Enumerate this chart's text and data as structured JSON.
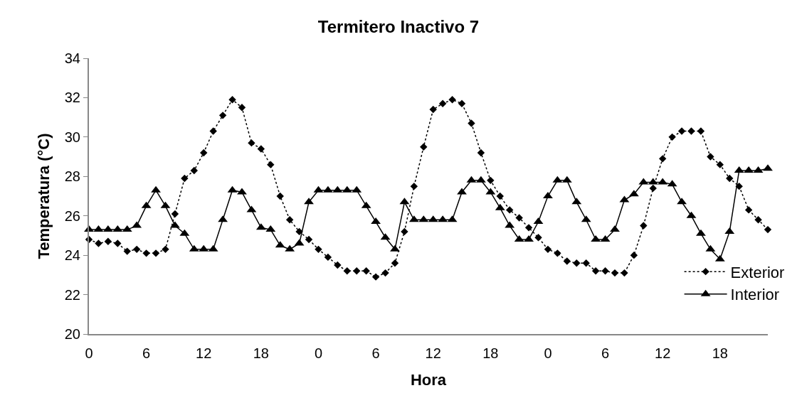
{
  "chart_data": {
    "type": "line",
    "title": "Termitero Inactivo 7",
    "xlabel": "Hora",
    "ylabel": "Temperatura (°C)",
    "categories": [
      "0",
      null,
      null,
      null,
      null,
      null,
      "6",
      null,
      null,
      null,
      null,
      null,
      "12",
      null,
      null,
      null,
      null,
      null,
      "18",
      null,
      null,
      null,
      null,
      null,
      "0",
      null,
      null,
      null,
      null,
      null,
      "6",
      null,
      null,
      null,
      null,
      null,
      "12",
      null,
      null,
      null,
      null,
      null,
      "18",
      null,
      null,
      null,
      null,
      null,
      "0",
      null,
      null,
      null,
      null,
      null,
      "6",
      null,
      null,
      null,
      null,
      null,
      "12",
      null,
      null,
      null,
      null,
      null,
      "18",
      null,
      null,
      null,
      null,
      null
    ],
    "series": [
      {
        "name": "Exterior",
        "color": "#000000",
        "marker": "diamond",
        "line_style": "dotted",
        "values": [
          24.8,
          24.6,
          24.7,
          24.6,
          24.2,
          24.3,
          24.1,
          24.1,
          24.3,
          26.1,
          27.9,
          28.3,
          29.2,
          30.3,
          31.1,
          31.9,
          31.5,
          29.7,
          29.4,
          28.6,
          27.0,
          25.8,
          25.2,
          24.8,
          24.3,
          23.9,
          23.5,
          23.2,
          23.2,
          23.2,
          22.9,
          23.1,
          23.6,
          25.2,
          27.5,
          29.5,
          31.4,
          31.7,
          31.9,
          31.7,
          30.7,
          29.2,
          27.8,
          27.0,
          26.3,
          25.9,
          25.4,
          24.9,
          24.3,
          24.1,
          23.7,
          23.6,
          23.6,
          23.2,
          23.2,
          23.1,
          23.1,
          24.0,
          25.5,
          27.4,
          28.9,
          30.0,
          30.3,
          30.3,
          30.3,
          29.0,
          28.6,
          27.9,
          27.5,
          26.3,
          25.8,
          25.3
        ]
      },
      {
        "name": "Interior",
        "color": "#000000",
        "marker": "triangle",
        "line_style": "solid",
        "values": [
          25.3,
          25.3,
          25.3,
          25.3,
          25.3,
          25.5,
          26.5,
          27.3,
          26.5,
          25.5,
          25.1,
          24.3,
          24.3,
          24.3,
          25.8,
          27.3,
          27.2,
          26.3,
          25.4,
          25.3,
          24.5,
          24.3,
          24.6,
          26.7,
          27.3,
          27.3,
          27.3,
          27.3,
          27.3,
          26.5,
          25.7,
          24.9,
          24.3,
          26.7,
          25.8,
          25.8,
          25.8,
          25.8,
          25.8,
          27.2,
          27.8,
          27.8,
          27.2,
          26.4,
          25.5,
          24.8,
          24.8,
          25.7,
          27.0,
          27.8,
          27.8,
          26.7,
          25.8,
          24.8,
          24.8,
          25.3,
          26.8,
          27.1,
          27.7,
          27.7,
          27.7,
          27.6,
          26.7,
          26.0,
          25.1,
          24.3,
          23.8,
          25.2,
          28.3,
          28.3,
          28.3,
          28.4
        ]
      }
    ],
    "ylim": [
      20,
      34
    ],
    "yticks": [
      20,
      22,
      24,
      26,
      28,
      30,
      32,
      34
    ],
    "legend": "bottom right"
  }
}
